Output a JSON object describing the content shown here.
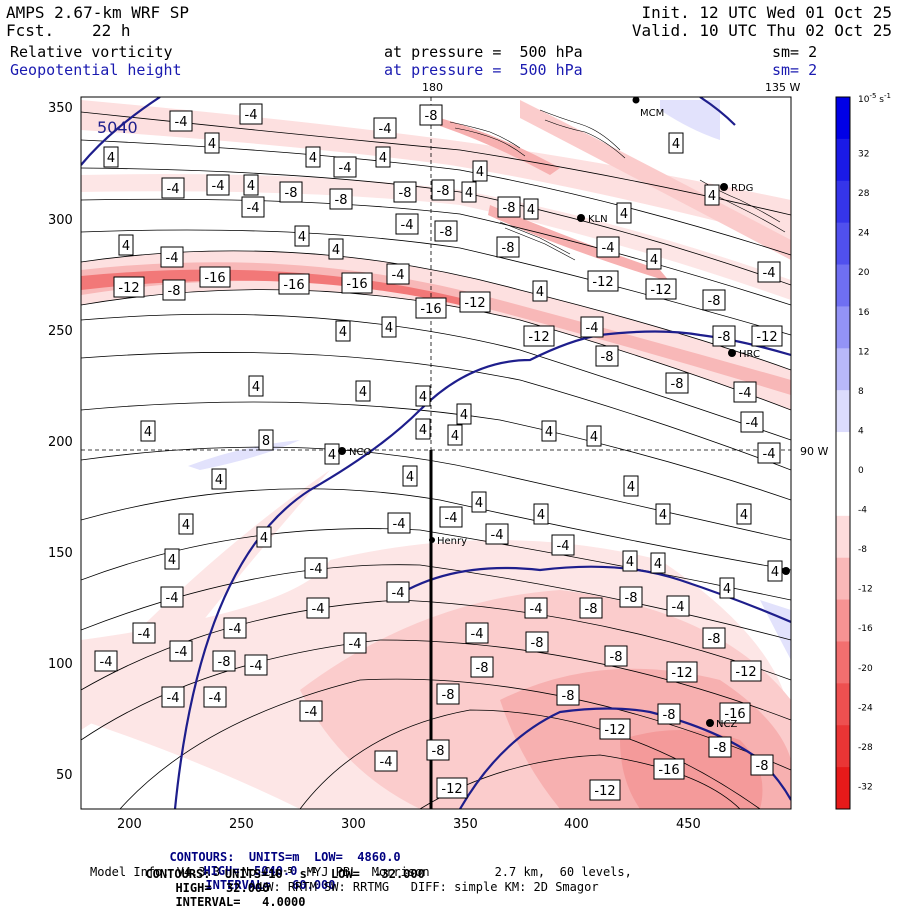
{
  "header": {
    "model": "AMPS 2.67-km WRF SP",
    "forecast_label": "Fcst.",
    "forecast_value": "22 h",
    "init": "Init. 12 UTC Wed 01 Oct 25",
    "valid": "Valid. 10 UTC Thu 02 Oct 25",
    "field1": "Relative vorticity",
    "field2": "Geopotential height",
    "pressure1": "at pressure =  500 hPa",
    "pressure2": "at pressure =  500 hPa",
    "sm1": "sm= 2",
    "sm2": "sm= 2"
  },
  "map": {
    "meridian_180": "180",
    "meridian_135w": "135 W",
    "meridian_90w": "90 W",
    "height_contour_label": "5040",
    "stations": [
      "MCM",
      "NCO",
      "Henry",
      "KLN",
      "RDG",
      "HRC",
      "NCZ"
    ],
    "x_ticks": [
      "200",
      "250",
      "300",
      "350",
      "400",
      "450"
    ],
    "y_ticks": [
      "350",
      "300",
      "250",
      "200",
      "150",
      "100",
      "50"
    ]
  },
  "colorbar": {
    "unit": "10",
    "unit_exp": "-5",
    "unit_suffix": " s",
    "unit_suffix_exp": "-1",
    "labels": [
      "32",
      "28",
      "24",
      "20",
      "16",
      "12",
      "8",
      "4",
      "0",
      "-4",
      "-8",
      "-12",
      "-16",
      "-20",
      "-24",
      "-28",
      "-32"
    ],
    "colors": [
      "#0000e6",
      "#1a1ae6",
      "#3535ea",
      "#5050ee",
      "#6f6ff2",
      "#9393f6",
      "#b8b8fa",
      "#dcdcfd",
      "#ffffff",
      "#ffffff",
      "#fddcdc",
      "#fab8b8",
      "#f69393",
      "#f26f6f",
      "#ee5050",
      "#ea3535",
      "#e61a1a"
    ]
  },
  "footer": {
    "line1_lead": "CONTOURS:  UNITS=m  LOW=  4860.0",
    "line1_high": "HIGH=  5040.0",
    "line1_int": "INTERVAL=   60.000",
    "line2_lead": "CONTOURS:  UNITS=10",
    "line2_exp1": "-5",
    "line2_s": " s",
    "line2_exp2": "-1",
    "line2_low": "  LOW=  -32.000",
    "line2_high": "HIGH=  32.000",
    "line2_int": "INTERVAL=   4.0000",
    "line3": "Model Info: V4.3.3   No Cu    MYJ PBL  Morrison         2.7 km,  60 levels,",
    "line4": "LW: RRTM SW: RRTMG   DIFF: simple KM: 2D Smagor"
  },
  "contour_labels": [
    {
      "v": "-4",
      "x": 181,
      "y": 121
    },
    {
      "v": "-4",
      "x": 251,
      "y": 114
    },
    {
      "v": "-4",
      "x": 385,
      "y": 128
    },
    {
      "v": "-8",
      "x": 431,
      "y": 115
    },
    {
      "v": "4",
      "x": 111,
      "y": 157
    },
    {
      "v": "4",
      "x": 212,
      "y": 143
    },
    {
      "v": "4",
      "x": 313,
      "y": 157
    },
    {
      "v": "-4",
      "x": 345,
      "y": 167
    },
    {
      "v": "4",
      "x": 383,
      "y": 157
    },
    {
      "v": "4",
      "x": 480,
      "y": 171
    },
    {
      "v": "4",
      "x": 676,
      "y": 143
    },
    {
      "v": "-4",
      "x": 173,
      "y": 188
    },
    {
      "v": "-4",
      "x": 218,
      "y": 185
    },
    {
      "v": "-8",
      "x": 291,
      "y": 192
    },
    {
      "v": "-8",
      "x": 341,
      "y": 199
    },
    {
      "v": "-8",
      "x": 405,
      "y": 192
    },
    {
      "v": "-8",
      "x": 443,
      "y": 190
    },
    {
      "v": "4",
      "x": 251,
      "y": 185
    },
    {
      "v": "4",
      "x": 469,
      "y": 192
    },
    {
      "v": "-4",
      "x": 253,
      "y": 207
    },
    {
      "v": "-4",
      "x": 407,
      "y": 224
    },
    {
      "v": "-8",
      "x": 446,
      "y": 231
    },
    {
      "v": "-8",
      "x": 509,
      "y": 207
    },
    {
      "v": "4",
      "x": 531,
      "y": 209
    },
    {
      "v": "4",
      "x": 624,
      "y": 213
    },
    {
      "v": "4",
      "x": 712,
      "y": 195
    },
    {
      "v": "4",
      "x": 126,
      "y": 245
    },
    {
      "v": "4",
      "x": 302,
      "y": 236
    },
    {
      "v": "4",
      "x": 336,
      "y": 249
    },
    {
      "v": "-8",
      "x": 508,
      "y": 247
    },
    {
      "v": "-4",
      "x": 608,
      "y": 247
    },
    {
      "v": "4",
      "x": 654,
      "y": 259
    },
    {
      "v": "-4",
      "x": 769,
      "y": 272
    },
    {
      "v": "-4",
      "x": 172,
      "y": 257
    },
    {
      "v": "-4",
      "x": 398,
      "y": 274
    },
    {
      "v": "-16",
      "x": 215,
      "y": 277
    },
    {
      "v": "-12",
      "x": 129,
      "y": 287
    },
    {
      "v": "-8",
      "x": 174,
      "y": 290
    },
    {
      "v": "-16",
      "x": 294,
      "y": 284
    },
    {
      "v": "-16",
      "x": 357,
      "y": 283
    },
    {
      "v": "-12",
      "x": 603,
      "y": 281
    },
    {
      "v": "-12",
      "x": 661,
      "y": 289
    },
    {
      "v": "4",
      "x": 540,
      "y": 291
    },
    {
      "v": "-12",
      "x": 475,
      "y": 302
    },
    {
      "v": "-16",
      "x": 431,
      "y": 308
    },
    {
      "v": "-8",
      "x": 714,
      "y": 300
    },
    {
      "v": "4",
      "x": 343,
      "y": 331
    },
    {
      "v": "4",
      "x": 389,
      "y": 327
    },
    {
      "v": "-4",
      "x": 592,
      "y": 327
    },
    {
      "v": "-12",
      "x": 539,
      "y": 336
    },
    {
      "v": "-8",
      "x": 724,
      "y": 336
    },
    {
      "v": "-12",
      "x": 767,
      "y": 336
    },
    {
      "v": "-8",
      "x": 607,
      "y": 356
    },
    {
      "v": "-8",
      "x": 677,
      "y": 383
    },
    {
      "v": "4",
      "x": 256,
      "y": 386
    },
    {
      "v": "4",
      "x": 363,
      "y": 391
    },
    {
      "v": "4",
      "x": 423,
      "y": 396
    },
    {
      "v": "-4",
      "x": 745,
      "y": 392
    },
    {
      "v": "4",
      "x": 464,
      "y": 414
    },
    {
      "v": "-4",
      "x": 752,
      "y": 422
    },
    {
      "v": "4",
      "x": 148,
      "y": 431
    },
    {
      "v": "8",
      "x": 266,
      "y": 440
    },
    {
      "v": "4",
      "x": 423,
      "y": 429
    },
    {
      "v": "4",
      "x": 455,
      "y": 435
    },
    {
      "v": "4",
      "x": 549,
      "y": 431
    },
    {
      "v": "4",
      "x": 594,
      "y": 436
    },
    {
      "v": "4",
      "x": 332,
      "y": 454
    },
    {
      "v": "-4",
      "x": 769,
      "y": 453
    },
    {
      "v": "4",
      "x": 219,
      "y": 479
    },
    {
      "v": "4",
      "x": 410,
      "y": 476
    },
    {
      "v": "4",
      "x": 631,
      "y": 486
    },
    {
      "v": "4",
      "x": 479,
      "y": 502
    },
    {
      "v": "4",
      "x": 541,
      "y": 514
    },
    {
      "v": "4",
      "x": 663,
      "y": 514
    },
    {
      "v": "4",
      "x": 744,
      "y": 514
    },
    {
      "v": "4",
      "x": 186,
      "y": 524
    },
    {
      "v": "-4",
      "x": 399,
      "y": 523
    },
    {
      "v": "-4",
      "x": 451,
      "y": 517
    },
    {
      "v": "-4",
      "x": 497,
      "y": 534
    },
    {
      "v": "4",
      "x": 264,
      "y": 537
    },
    {
      "v": "-4",
      "x": 563,
      "y": 545
    },
    {
      "v": "4",
      "x": 630,
      "y": 561
    },
    {
      "v": "4",
      "x": 658,
      "y": 563
    },
    {
      "v": "4",
      "x": 172,
      "y": 559
    },
    {
      "v": "-4",
      "x": 316,
      "y": 568
    },
    {
      "v": "4",
      "x": 775,
      "y": 571
    },
    {
      "v": "4",
      "x": 727,
      "y": 588
    },
    {
      "v": "-4",
      "x": 172,
      "y": 597
    },
    {
      "v": "-4",
      "x": 398,
      "y": 592
    },
    {
      "v": "-8",
      "x": 631,
      "y": 597
    },
    {
      "v": "-4",
      "x": 318,
      "y": 608
    },
    {
      "v": "-4",
      "x": 536,
      "y": 608
    },
    {
      "v": "-8",
      "x": 591,
      "y": 608
    },
    {
      "v": "-4",
      "x": 678,
      "y": 606
    },
    {
      "v": "-4",
      "x": 144,
      "y": 633
    },
    {
      "v": "-4",
      "x": 235,
      "y": 628
    },
    {
      "v": "-4",
      "x": 477,
      "y": 633
    },
    {
      "v": "-8",
      "x": 537,
      "y": 642
    },
    {
      "v": "-8",
      "x": 714,
      "y": 638
    },
    {
      "v": "-4",
      "x": 181,
      "y": 651
    },
    {
      "v": "-4",
      "x": 355,
      "y": 643
    },
    {
      "v": "-4",
      "x": 106,
      "y": 661
    },
    {
      "v": "-8",
      "x": 224,
      "y": 661
    },
    {
      "v": "-4",
      "x": 256,
      "y": 665
    },
    {
      "v": "-8",
      "x": 482,
      "y": 667
    },
    {
      "v": "-8",
      "x": 616,
      "y": 656
    },
    {
      "v": "-12",
      "x": 682,
      "y": 672
    },
    {
      "v": "-12",
      "x": 746,
      "y": 671
    },
    {
      "v": "-4",
      "x": 173,
      "y": 697
    },
    {
      "v": "-4",
      "x": 215,
      "y": 697
    },
    {
      "v": "-8",
      "x": 448,
      "y": 694
    },
    {
      "v": "-8",
      "x": 568,
      "y": 695
    },
    {
      "v": "-16",
      "x": 735,
      "y": 713
    },
    {
      "v": "-4",
      "x": 311,
      "y": 711
    },
    {
      "v": "-8",
      "x": 669,
      "y": 714
    },
    {
      "v": "-12",
      "x": 615,
      "y": 729
    },
    {
      "v": "-8",
      "x": 438,
      "y": 750
    },
    {
      "v": "-8",
      "x": 720,
      "y": 747
    },
    {
      "v": "-4",
      "x": 386,
      "y": 761
    },
    {
      "v": "-8",
      "x": 762,
      "y": 765
    },
    {
      "v": "-16",
      "x": 669,
      "y": 769
    },
    {
      "v": "-12",
      "x": 452,
      "y": 788
    },
    {
      "v": "-12",
      "x": 605,
      "y": 790
    }
  ]
}
